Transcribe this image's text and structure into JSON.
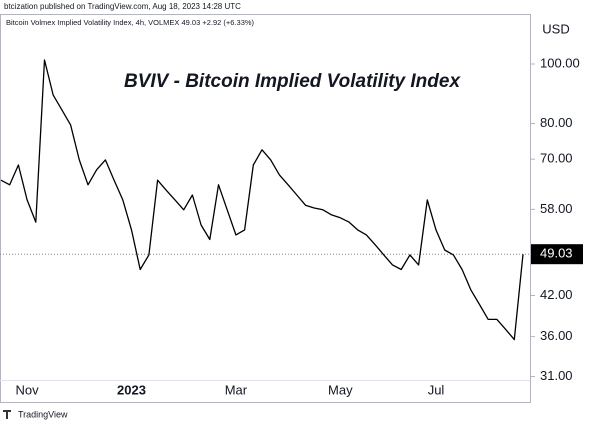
{
  "header": "btcization published on TradingView.com, Aug 18, 2023 14:28 UTC",
  "footer": "TradingView",
  "chart_data": {
    "type": "line",
    "title": "BVIV - Bitcoin Implied Volatility Index",
    "legend_text": "Bitcoin Volmex Implied Volatility Index, 4h, VOLMEX  49.03  +2.92 (+6.33%)",
    "y_unit": "USD",
    "log_scale": true,
    "color": "#000000",
    "categories": [
      null,
      null,
      null,
      "Nov",
      null,
      null,
      null,
      null,
      null,
      null,
      null,
      null,
      null,
      null,
      null,
      "2023",
      null,
      null,
      null,
      null,
      null,
      null,
      null,
      null,
      null,
      null,
      null,
      "Mar",
      null,
      null,
      null,
      null,
      null,
      null,
      null,
      null,
      null,
      null,
      null,
      "May",
      null,
      null,
      null,
      null,
      null,
      null,
      null,
      null,
      null,
      null,
      "Jul",
      null,
      null,
      null,
      null,
      null,
      null,
      null,
      null,
      null,
      null
    ],
    "values": [
      64.7,
      63.6,
      68.5,
      60.1,
      55.3,
      101.5,
      89.0,
      84.2,
      79.6,
      69.8,
      63.6,
      67.3,
      69.8,
      64.7,
      60.1,
      53.7,
      46.3,
      48.9,
      64.7,
      62.3,
      60.1,
      57.9,
      61.2,
      54.7,
      51.8,
      63.6,
      57.9,
      52.7,
      53.7,
      68.5,
      72.5,
      69.8,
      66.0,
      63.6,
      61.2,
      58.9,
      58.3,
      57.9,
      56.8,
      56.2,
      55.3,
      53.7,
      52.7,
      50.8,
      48.9,
      47.1,
      46.3,
      48.9,
      47.1,
      60.1,
      53.7,
      49.8,
      48.9,
      46.3,
      42.9,
      40.6,
      38.4,
      38.4,
      37.0,
      35.6,
      49.03
    ],
    "current_value": {
      "value": 49.03,
      "label": "49.03"
    },
    "ylim": [
      30.6,
      120.6
    ],
    "yticks": [
      {
        "value": 31,
        "label": "31.00"
      },
      {
        "value": 36,
        "label": "36.00"
      },
      {
        "value": 42,
        "label": "42.00"
      },
      {
        "value": 58,
        "label": "58.00"
      },
      {
        "value": 70,
        "label": "70.00"
      },
      {
        "value": 80,
        "label": "80.00"
      },
      {
        "value": 100,
        "label": "100.00"
      }
    ]
  }
}
